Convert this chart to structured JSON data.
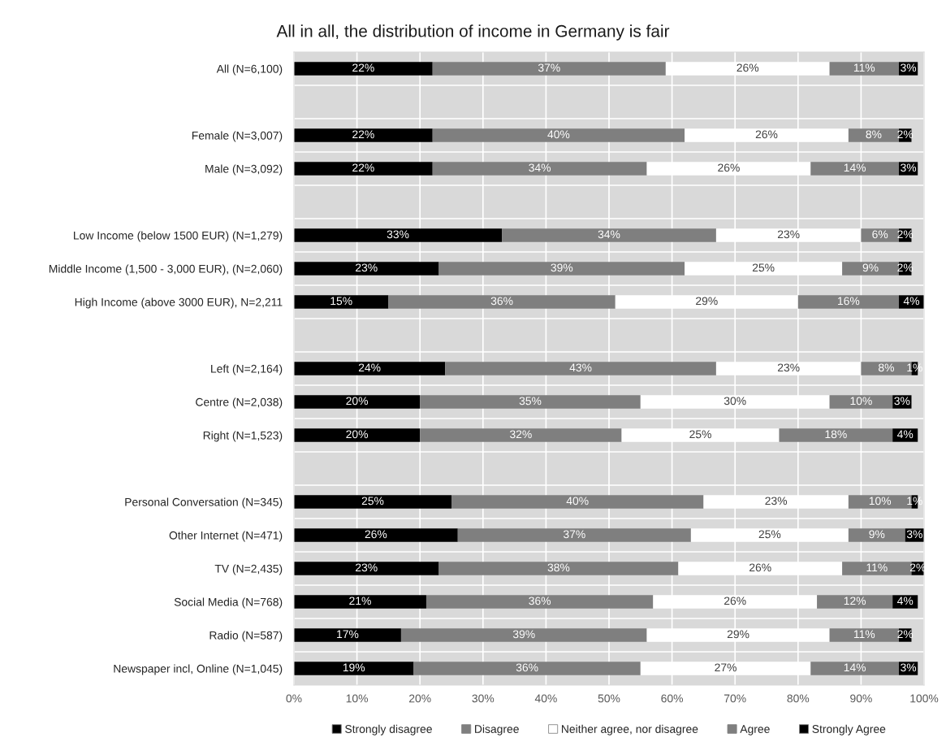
{
  "chart_data": {
    "type": "bar",
    "orientation": "horizontal",
    "stacked": true,
    "title": "All in all, the distribution of income in Germany is fair",
    "categories": [
      "All (N=6,100)",
      null,
      "Female (N=3,007)",
      "Male (N=3,092)",
      null,
      "Low Income (below 1500 EUR) (N=1,279)",
      "Middle Income (1,500 - 3,000 EUR), (N=2,060)",
      "High Income (above 3000 EUR), N=2,211",
      null,
      "Left (N=2,164)",
      "Centre (N=2,038)",
      "Right (N=1,523)",
      null,
      "Personal Conversation (N=345)",
      "Other Internet (N=471)",
      "TV (N=2,435)",
      "Social Media (N=768)",
      "Radio (N=587)",
      "Newspaper incl, Online (N=1,045)"
    ],
    "series": [
      {
        "name": "Strongly disagree",
        "color": "#000000",
        "values": [
          22,
          null,
          22,
          22,
          null,
          33,
          23,
          15,
          null,
          24,
          20,
          20,
          null,
          25,
          26,
          23,
          21,
          17,
          19
        ],
        "value_labels": [
          "22%",
          null,
          "22%",
          "22%",
          null,
          "33%",
          "23%",
          "15%",
          null,
          "24%",
          "20%",
          "20%",
          null,
          "25%",
          "26%",
          "23%",
          "21%",
          "17%",
          "19%"
        ]
      },
      {
        "name": "Disagree",
        "color": "#7f7f7f",
        "values": [
          37,
          null,
          40,
          34,
          null,
          34,
          39,
          36,
          null,
          43,
          35,
          32,
          null,
          40,
          37,
          38,
          36,
          39,
          36
        ],
        "value_labels": [
          "37%",
          null,
          "40%",
          "34%",
          null,
          "34%",
          "39%",
          "36%",
          null,
          "43%",
          "35%",
          "32%",
          null,
          "40%",
          "37%",
          "38%",
          "36%",
          "39%",
          "36%"
        ]
      },
      {
        "name": "Neither agree, nor disagree",
        "color": "#ffffff",
        "values": [
          26,
          null,
          26,
          26,
          null,
          23,
          25,
          29,
          null,
          23,
          30,
          25,
          null,
          23,
          25,
          26,
          26,
          29,
          27
        ],
        "value_labels": [
          "26%",
          null,
          "26%",
          "26%",
          null,
          "23%",
          "25%",
          "29%",
          null,
          "23%",
          "30%",
          "25%",
          null,
          "23%",
          "25%",
          "26%",
          "26%",
          "29%",
          "27%"
        ]
      },
      {
        "name": "Agree",
        "color": "#7f7f7f",
        "values": [
          11,
          null,
          8,
          14,
          null,
          6,
          9,
          16,
          null,
          8,
          10,
          18,
          null,
          10,
          9,
          11,
          12,
          11,
          14
        ],
        "value_labels": [
          "11%",
          null,
          "8%",
          "14%",
          null,
          "6%",
          "9%",
          "16%",
          null,
          "8%",
          "10%",
          "18%",
          null,
          "10%",
          "9%",
          "11%",
          "12%",
          "11%",
          "14%"
        ]
      },
      {
        "name": "Strongly Agree",
        "color": "#000000",
        "values": [
          3,
          null,
          2,
          3,
          null,
          2,
          2,
          4,
          null,
          1,
          3,
          4,
          null,
          1,
          3,
          2,
          4,
          2,
          3
        ],
        "value_labels": [
          "3%",
          null,
          "2%",
          "3%",
          null,
          "2%",
          "2%",
          "4%",
          null,
          "1%",
          "3%",
          "4%",
          null,
          "1%",
          "3%",
          "2%",
          "4%",
          "2%",
          "3%"
        ]
      }
    ],
    "xlim": [
      0,
      100
    ],
    "xticks": [
      {
        "value": 0,
        "label": "0%"
      },
      {
        "value": 10,
        "label": "10%"
      },
      {
        "value": 20,
        "label": "20%"
      },
      {
        "value": 30,
        "label": "30%"
      },
      {
        "value": 40,
        "label": "40%"
      },
      {
        "value": 50,
        "label": "50%"
      },
      {
        "value": 60,
        "label": "60%"
      },
      {
        "value": 70,
        "label": "70%"
      },
      {
        "value": 80,
        "label": "80%"
      },
      {
        "value": 90,
        "label": "90%"
      },
      {
        "value": 100,
        "label": "100%"
      }
    ],
    "grid": true,
    "legend": "bottom"
  }
}
